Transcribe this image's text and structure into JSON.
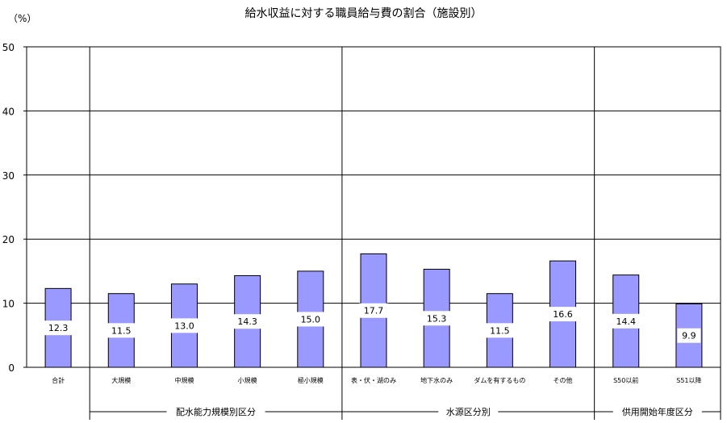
{
  "chart_data": {
    "type": "bar",
    "title": "給水収益に対する職員給与費の割合（施設別）",
    "ylabel": "（%）",
    "ylim": [
      0,
      50
    ],
    "yticks": [
      0,
      10,
      20,
      30,
      40,
      50
    ],
    "grid": true,
    "categories": [
      "合計",
      "大規模",
      "中規模",
      "小規模",
      "極小規模",
      "表・伏・湖のみ",
      "地下水のみ",
      "ダムを有するもの",
      "その他",
      "S50以前",
      "S51以降"
    ],
    "values": [
      12.3,
      11.5,
      13.0,
      14.3,
      15.0,
      17.7,
      15.3,
      11.5,
      16.6,
      14.4,
      9.9
    ],
    "value_labels": [
      "12.3",
      "11.5",
      "13.0",
      "14.3",
      "15.0",
      "17.7",
      "15.3",
      "11.5",
      "16.6",
      "14.4",
      "9.9"
    ],
    "groups": [
      {
        "label": "",
        "categories": [
          "合計"
        ]
      },
      {
        "label": "配水能力規模別区分",
        "categories": [
          "大規模",
          "中規模",
          "小規模",
          "極小規模"
        ]
      },
      {
        "label": "水源区分別",
        "categories": [
          "表・伏・湖のみ",
          "地下水のみ",
          "ダムを有するもの",
          "その他"
        ]
      },
      {
        "label": "供用開始年度区分",
        "categories": [
          "S50以前",
          "S51以降"
        ]
      }
    ],
    "bar_color": "#9999ff"
  }
}
